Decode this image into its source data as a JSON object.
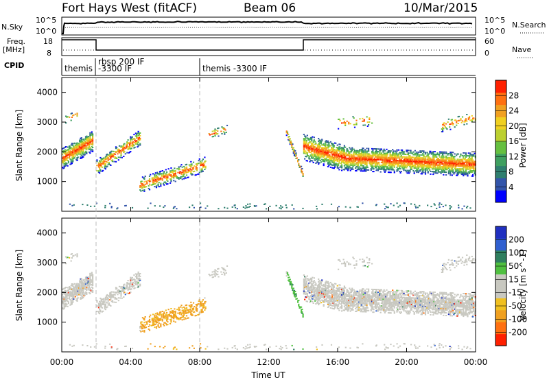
{
  "header": {
    "station": "Fort Hays West (fitACF)",
    "beam": "Beam 06",
    "date": "10/Mar/2015"
  },
  "strip_labels": {
    "nsky": "N.Sky",
    "nsky_ticks": [
      "10^5",
      "10^0"
    ],
    "nsearch": "N.Search",
    "nsearch_ticks": [
      "10^5",
      "10^0"
    ],
    "freq_label_1": "Freq.",
    "freq_label_2": "[MHz]",
    "freq_ticks": [
      "18",
      "8"
    ],
    "nave_ticks": [
      "60",
      "0"
    ],
    "nave": "Nave",
    "cpid": "CPID",
    "modes": [
      "themis",
      "rbsp 200 IF",
      "-3300 IF",
      "themis -3300 IF"
    ]
  },
  "chart_data": [
    {
      "type": "heatmap",
      "name": "power-panel",
      "ylabel": "Slant Range [km]",
      "yticks": [
        "1000",
        "2000",
        "3000",
        "4000"
      ],
      "ylim": [
        0,
        4500
      ],
      "colorbar_label": "Power [dB]",
      "colorbar_ticks": [
        "4",
        "8",
        "12",
        "16",
        "20",
        "24",
        "28"
      ],
      "colors": [
        "#0000ff",
        "#3355aa",
        "#2f7f6f",
        "#3fa060",
        "#66c040",
        "#bcd030",
        "#f0d020",
        "#f0a020",
        "#ff7010",
        "#ff2000"
      ]
    },
    {
      "type": "heatmap",
      "name": "velocity-panel",
      "ylabel": "Slant Range [km]",
      "yticks": [
        "1000",
        "2000",
        "3000",
        "4000"
      ],
      "ylim": [
        0,
        4500
      ],
      "colorbar_label": "Velocity [m s^-1]",
      "colorbar_ticks": [
        "200",
        "100",
        "50",
        "15",
        "-15",
        "-50",
        "-100",
        "-200"
      ],
      "colors": [
        "#2030c0",
        "#3060d0",
        "#2f7f5f",
        "#50c040",
        "#c8c8c0",
        "#c8c8c0",
        "#f0c020",
        "#f0a020",
        "#ff7010",
        "#ff2000"
      ]
    }
  ],
  "xaxis": {
    "label": "Time UT",
    "ticks": [
      "00:00",
      "04:00",
      "08:00",
      "12:00",
      "16:00",
      "20:00",
      "00:00"
    ]
  }
}
